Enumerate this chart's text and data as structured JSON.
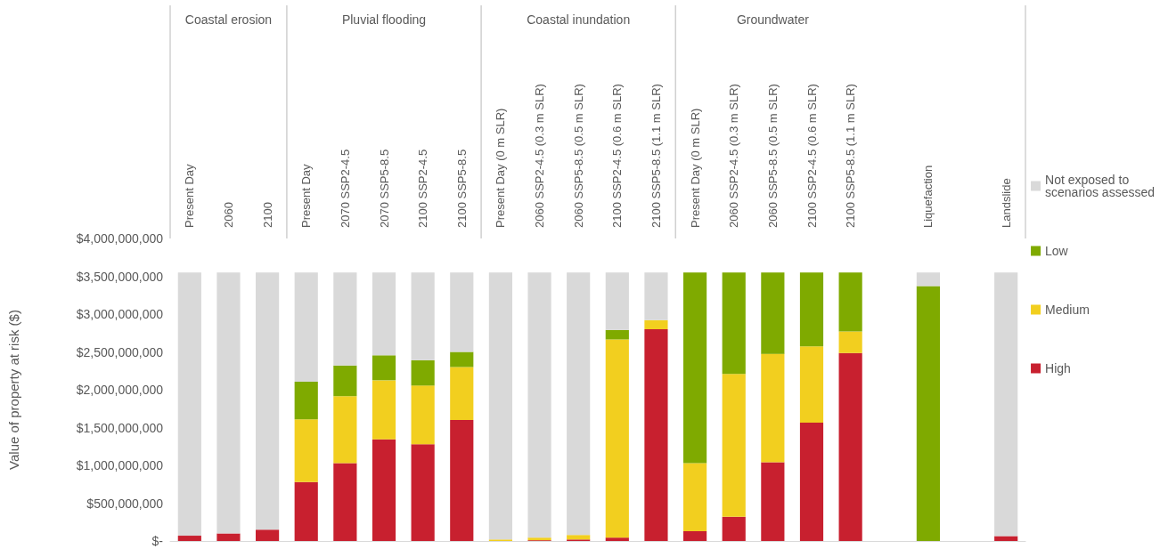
{
  "chart_data": {
    "type": "bar",
    "stacked": true,
    "ylabel": "Value of property at risk ($)",
    "annotations": [
      "Coastal erosion",
      "Pluvial flooding",
      "Coastal inundation",
      "Groundwater"
    ],
    "categories": [
      "Present Day",
      "2060",
      "2100",
      "Present Day",
      "2070 SSP2-4.5",
      "2070 SSP5-8.5",
      "2100 SSP2-4.5",
      "2100 SSP5-8.5",
      "Present Day (0 m SLR)",
      "2060 SSP2-4.5 (0.3 m SLR)",
      "2060 SSP5-8.5 (0.5 m SLR)",
      "2100 SSP2-4.5 (0.6 m SLR)",
      "2100 SSP5-8.5 (1.1 m SLR)",
      "Present Day (0 m SLR)",
      "2060 SSP2-4.5 (0.3 m SLR)",
      "2060 SSP5-8.5 (0.5 m SLR)",
      "2100 SSP2-4.5 (0.6 m SLR)",
      "2100 SSP5-8.5 (1.1 m SLR)",
      null,
      "Liquefaction",
      null,
      "Landslide"
    ],
    "series": [
      {
        "name": "High",
        "color": "#c8202f",
        "values": [
          70000000,
          100000000,
          150000000,
          780000000,
          1030000000,
          1345000000,
          1280000000,
          1600000000,
          0,
          10000000,
          20000000,
          45000000,
          2800000000,
          130000000,
          320000000,
          1040000000,
          1565000000,
          2485000000,
          null,
          0,
          null,
          65000000
        ]
      },
      {
        "name": "Medium",
        "color": "#f2cf1f",
        "values": [
          0,
          0,
          0,
          830000000,
          885000000,
          780000000,
          775000000,
          700000000,
          20000000,
          35000000,
          60000000,
          2620000000,
          120000000,
          900000000,
          1890000000,
          1435000000,
          1010000000,
          285000000,
          null,
          0,
          null,
          0
        ]
      },
      {
        "name": "Low",
        "color": "#7faa00",
        "values": [
          0,
          0,
          0,
          495000000,
          405000000,
          330000000,
          335000000,
          200000000,
          0,
          0,
          0,
          125000000,
          0,
          2520000000,
          1340000000,
          1075000000,
          975000000,
          780000000,
          null,
          3370000000,
          null,
          0
        ]
      },
      {
        "name": "Not exposed to scenarios assessed",
        "color": "#d9d9d9",
        "values": [
          3480000000,
          3450000000,
          3400000000,
          1445000000,
          1230000000,
          1095000000,
          1160000000,
          1050000000,
          3530000000,
          3505000000,
          3470000000,
          760000000,
          630000000,
          0,
          0,
          0,
          0,
          0,
          null,
          180000000,
          null,
          3485000000
        ]
      }
    ],
    "ylim": [
      0,
      4000000000
    ],
    "yticks": [
      {
        "value": 0,
        "label": "$-"
      },
      {
        "value": 500000000,
        "label": "$500,000,000"
      },
      {
        "value": 1000000000,
        "label": "$1,000,000,000"
      },
      {
        "value": 1500000000,
        "label": "$1,500,000,000"
      },
      {
        "value": 2000000000,
        "label": "$2,000,000,000"
      },
      {
        "value": 2500000000,
        "label": "$2,500,000,000"
      },
      {
        "value": 3000000000,
        "label": "$3,000,000,000"
      },
      {
        "value": 3500000000,
        "label": "$3,500,000,000"
      },
      {
        "value": 4000000000,
        "label": "$4,000,000,000"
      }
    ],
    "grid": false,
    "legend": "right"
  }
}
